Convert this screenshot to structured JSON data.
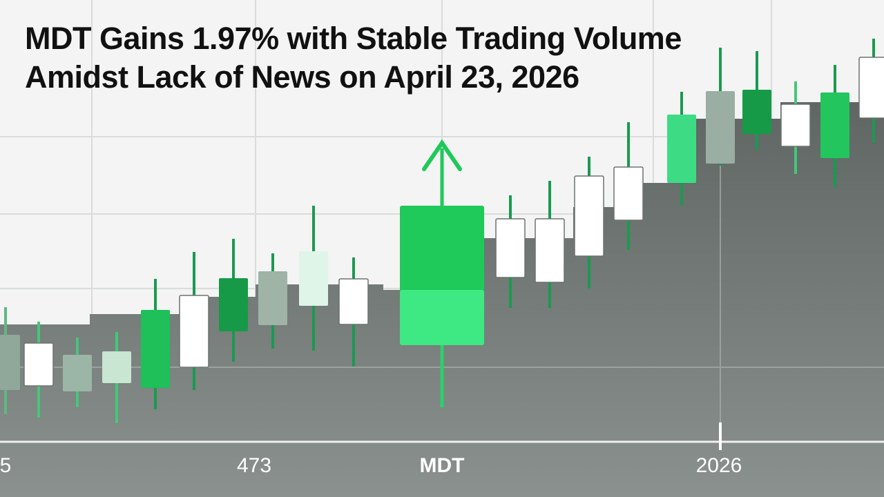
{
  "headline": {
    "title": "MDT Gains 1.97% with Stable Trading Volume Amidst Lack of News on April 23, 2026"
  },
  "axis_labels": [
    "5",
    "473",
    "MDT",
    "2026"
  ]
}
